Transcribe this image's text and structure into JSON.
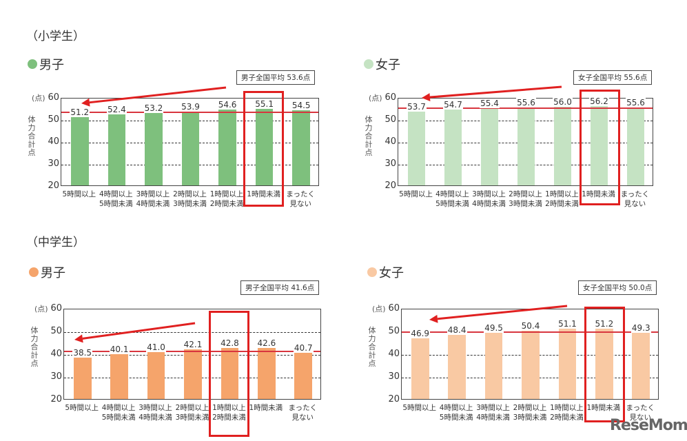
{
  "sections": {
    "elementary": {
      "title": "（小学生）"
    },
    "junior_high": {
      "title": "（中学生）"
    }
  },
  "labels": {
    "boys": "男子",
    "girls": "女子",
    "y_unit": "(点)",
    "y_axis": "体力合計点",
    "y_ticks": [
      "60",
      "50",
      "40",
      "30",
      "20"
    ]
  },
  "categories": [
    "5時間以上",
    "4時間以上\n5時間未満",
    "3時間以上\n4時間未満",
    "2時間以上\n3時間未満",
    "1時間以上\n2時間未満",
    "1時間未満",
    "まったく\n見ない"
  ],
  "charts": {
    "es_boys": {
      "avg_label": "男子全国平均 53.6点",
      "values": [
        "51.2",
        "52.4",
        "53.2",
        "53.9",
        "54.6",
        "55.1",
        "54.5"
      ]
    },
    "es_girls": {
      "avg_label": "女子全国平均 55.6点",
      "values": [
        "53.7",
        "54.7",
        "55.4",
        "55.6",
        "56.0",
        "56.2",
        "55.6"
      ]
    },
    "jh_boys": {
      "avg_label": "男子全国平均 41.6点",
      "values": [
        "38.5",
        "40.1",
        "41.0",
        "42.1",
        "42.8",
        "42.6",
        "40.7"
      ]
    },
    "jh_girls": {
      "avg_label": "女子全国平均 50.0点",
      "values": [
        "46.9",
        "48.4",
        "49.5",
        "50.4",
        "51.1",
        "51.2",
        "49.3"
      ]
    }
  },
  "colors": {
    "es_boys": "#7ec07d",
    "es_girls": "#c5e3c3",
    "jh_boys": "#f5a46b",
    "jh_girls": "#f9c9a3",
    "avg_line": "#d8353e",
    "highlight": "#e02020"
  },
  "watermark": "ReseMom.",
  "chart_data": [
    {
      "type": "bar",
      "title": "小学生 男子",
      "categories": [
        "5時間以上",
        "4時間以上5時間未満",
        "3時間以上4時間未満",
        "2時間以上3時間未満",
        "1時間以上2時間未満",
        "1時間未満",
        "まったく見ない"
      ],
      "values": [
        51.2,
        52.4,
        53.2,
        53.9,
        54.6,
        55.1,
        54.5
      ],
      "reference_line": {
        "label": "男子全国平均 53.6点",
        "value": 53.6
      },
      "highlighted_category": "1時間未満",
      "ylabel": "体力合計点 (点)",
      "ylim": [
        20,
        60
      ],
      "yticks": [
        20,
        30,
        40,
        50,
        60
      ],
      "grid": true
    },
    {
      "type": "bar",
      "title": "小学生 女子",
      "categories": [
        "5時間以上",
        "4時間以上5時間未満",
        "3時間以上4時間未満",
        "2時間以上3時間未満",
        "1時間以上2時間未満",
        "1時間未満",
        "まったく見ない"
      ],
      "values": [
        53.7,
        54.7,
        55.4,
        55.6,
        56.0,
        56.2,
        55.6
      ],
      "reference_line": {
        "label": "女子全国平均 55.6点",
        "value": 55.6
      },
      "highlighted_category": "1時間未満",
      "ylabel": "体力合計点 (点)",
      "ylim": [
        20,
        60
      ],
      "yticks": [
        20,
        30,
        40,
        50,
        60
      ],
      "grid": true
    },
    {
      "type": "bar",
      "title": "中学生 男子",
      "categories": [
        "5時間以上",
        "4時間以上5時間未満",
        "3時間以上4時間未満",
        "2時間以上3時間未満",
        "1時間以上2時間未満",
        "1時間未満",
        "まったく見ない"
      ],
      "values": [
        38.5,
        40.1,
        41.0,
        42.1,
        42.8,
        42.6,
        40.7
      ],
      "reference_line": {
        "label": "男子全国平均 41.6点",
        "value": 41.6
      },
      "highlighted_category": "1時間以上2時間未満",
      "ylabel": "体力合計点 (点)",
      "ylim": [
        20,
        60
      ],
      "yticks": [
        20,
        30,
        40,
        50,
        60
      ],
      "grid": true
    },
    {
      "type": "bar",
      "title": "中学生 女子",
      "categories": [
        "5時間以上",
        "4時間以上5時間未満",
        "3時間以上4時間未満",
        "2時間以上3時間未満",
        "1時間以上2時間未満",
        "1時間未満",
        "まったく見ない"
      ],
      "values": [
        46.9,
        48.4,
        49.5,
        50.4,
        51.1,
        51.2,
        49.3
      ],
      "reference_line": {
        "label": "女子全国平均 50.0点",
        "value": 50.0
      },
      "highlighted_category": "1時間未満",
      "ylabel": "体力合計点 (点)",
      "ylim": [
        20,
        60
      ],
      "yticks": [
        20,
        30,
        40,
        50,
        60
      ],
      "grid": true
    }
  ]
}
